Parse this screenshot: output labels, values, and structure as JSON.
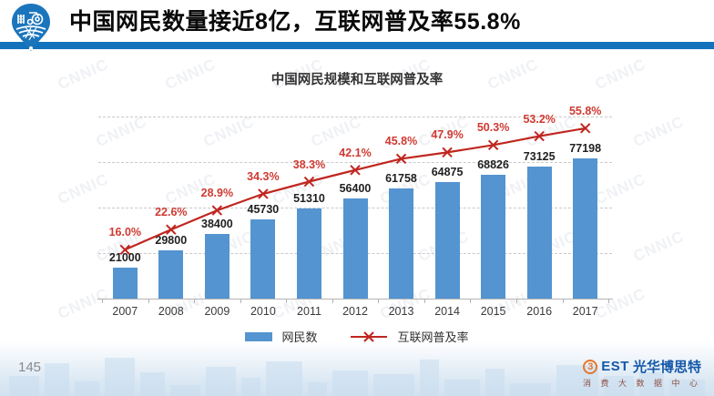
{
  "header": {
    "title": "中国网民数量接近8亿，互联网普及率55.8%"
  },
  "chart_data": {
    "type": "bar+line",
    "title": "中国网民规模和互联网普及率",
    "categories": [
      "2007",
      "2008",
      "2009",
      "2010",
      "2011",
      "2012",
      "2013",
      "2014",
      "2015",
      "2016",
      "2017"
    ],
    "series": [
      {
        "name": "网民数",
        "type": "bar",
        "values": [
          21000,
          29800,
          38400,
          45730,
          51310,
          56400,
          61758,
          64875,
          68826,
          73125,
          77198
        ],
        "unit": "万人",
        "color": "#5494d0"
      },
      {
        "name": "互联网普及率",
        "type": "line",
        "marker": "x",
        "values": [
          16.0,
          22.6,
          28.9,
          34.3,
          38.3,
          42.1,
          45.8,
          47.9,
          50.3,
          53.2,
          55.8
        ],
        "unit": "%",
        "color": "#c0261f"
      }
    ],
    "legend_position": "bottom",
    "grid": "dashed-horizontal",
    "watermark": "CNNIC"
  },
  "footer": {
    "page_number": "145",
    "brand": {
      "mark": "3",
      "name_en": "EST",
      "name_cn": "光华博思特",
      "subtitle": "消 费 大 数 据 中 心"
    }
  },
  "colors": {
    "accent_bar": "#1272bc",
    "bar_blue": "#5494d0",
    "line_red": "#c0261f",
    "pct_label_red": "#cf3a32"
  }
}
